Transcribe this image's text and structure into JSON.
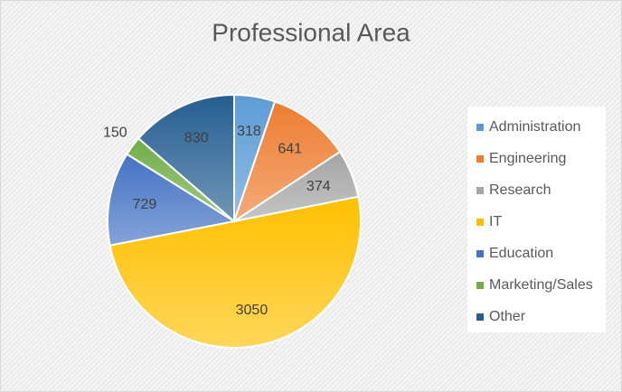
{
  "chart_data": {
    "type": "pie",
    "title": "Professional Area",
    "categories": [
      "Administration",
      "Engineering",
      "Research",
      "IT",
      "Education",
      "Marketing/Sales",
      "Other"
    ],
    "values": [
      318,
      641,
      374,
      3050,
      729,
      150,
      830
    ],
    "colors": [
      "#5B9BD5",
      "#ED7D31",
      "#A5A5A5",
      "#FFC000",
      "#4472C4",
      "#70AD47",
      "#255E91"
    ],
    "legend": "right"
  }
}
